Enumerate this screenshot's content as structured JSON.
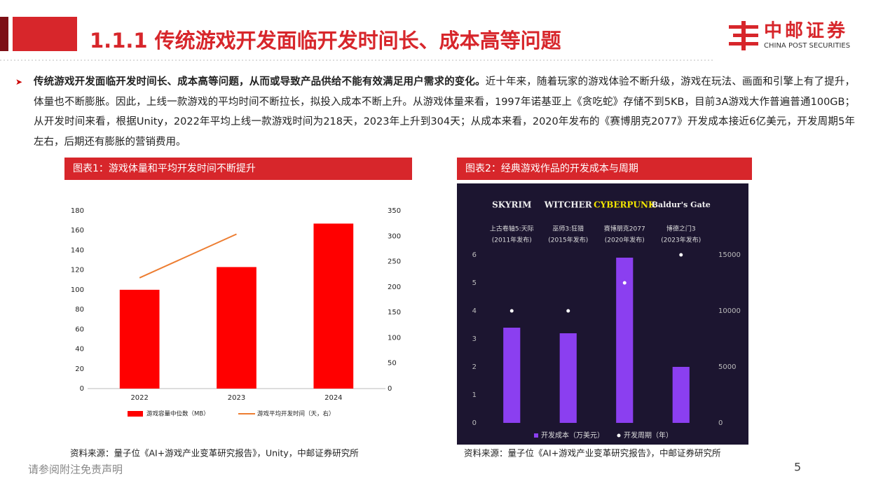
{
  "header": {
    "title": "1.1.1 传统游戏开发面临开发时间长、成本高等问题",
    "brand": "中邮证券",
    "brand_en": "CHINA POST SECURITIES"
  },
  "body": {
    "bold": "传统游戏开发面临开发时间长、成本高等问题，从而或导致产品供给不能有效满足用户需求的变化。",
    "text": "近十年来，随着玩家的游戏体验不断升级，游戏在玩法、画面和引擎上有了提升，体量也不断膨胀。因此，上线一款游戏的平均时间不断拉长，拟投入成本不断上升。从游戏体量来看，1997年诺基亚上《贪吃蛇》存储不到5KB，目前3A游戏大作普遍普通100GB；从开发时间来看，根据Unity，2022年平均上线一款游戏时间为218天，2023年上升到304天；从成本来看，2020年发布的《赛博朋克2077》开发成本接近6亿美元，开发周期5年左右，后期还有膨胀的营销费用。"
  },
  "chart_data": [
    {
      "type": "bar",
      "title": "图表1：游戏体量和平均开发时间不断提升",
      "categories": [
        "2022",
        "2023",
        "2024"
      ],
      "series": [
        {
          "name": "游戏容量中位数（MB）",
          "type": "bar",
          "color": "#ff0000",
          "values": [
            100,
            123,
            167
          ]
        },
        {
          "name": "游戏平均开发时间（天，右）",
          "type": "line",
          "axis": "y2",
          "color": "#ed7d31",
          "values": [
            218,
            304,
            null
          ]
        }
      ],
      "ylim": [
        0,
        180
      ],
      "yticks": [
        0,
        20,
        40,
        60,
        80,
        100,
        120,
        140,
        160,
        180
      ],
      "y2lim": [
        0,
        350
      ],
      "y2ticks": [
        0,
        50,
        100,
        150,
        200,
        250,
        300,
        350
      ],
      "grid": false,
      "legend": "bottom",
      "source": "资料来源：量子位《AI+游戏产业变革研究报告》，Unity，中邮证券研究所"
    },
    {
      "type": "bar",
      "title": "图表2：经典游戏作品的开发成本与周期",
      "logos": [
        "SKYRIM",
        "WITCHER",
        "CYBERPUNK",
        "Baldur's Gate"
      ],
      "categories": [
        "上古卷轴5:天际",
        "巫师3:狂猎",
        "赛博朋克2077",
        "博德之门3"
      ],
      "subcategories": [
        "(2011年发布)",
        "(2015年发布)",
        "(2020年发布)",
        "(2023年发布)"
      ],
      "series": [
        {
          "name": "开发成本（万美元）",
          "type": "bar",
          "color": "#8b3ff0",
          "values": [
            3.4,
            3.2,
            5.9,
            2.0
          ]
        },
        {
          "name": "开发周期（年）",
          "type": "scatter",
          "axis": "y2",
          "color": "#ffffff",
          "values": [
            10000,
            10000,
            12500,
            15000
          ]
        }
      ],
      "ylim": [
        0,
        6
      ],
      "yticks": [
        0,
        1,
        2,
        3,
        4,
        5,
        6
      ],
      "y2lim": [
        0,
        15000
      ],
      "y2ticks": [
        0,
        5000,
        10000,
        15000
      ],
      "grid": false,
      "legend": "bottom",
      "source": "资料来源：量子位《AI+游戏产业变革研究报告》，中邮证券研究所"
    }
  ],
  "footer": {
    "disclaimer": "请参阅附注免责声明",
    "page": "5"
  }
}
